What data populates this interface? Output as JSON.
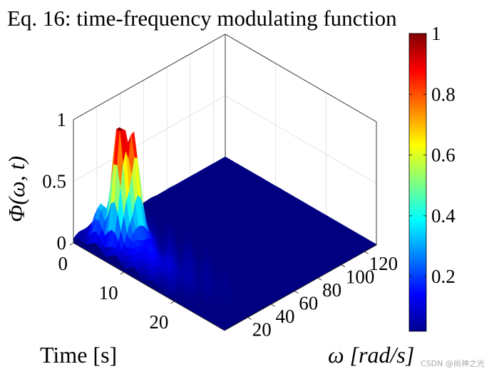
{
  "chart_data": {
    "type": "surface3d",
    "title": "Eq. 16: time-frequency modulating function",
    "xlabel": "Time [s]",
    "ylabel": "ω [rad/s]",
    "zlabel": "Φ(ω, t)",
    "xlim": [
      0,
      30
    ],
    "ylim": [
      0,
      130
    ],
    "zlim": [
      0,
      1
    ],
    "xticks": [
      0,
      10,
      20
    ],
    "yticks": [
      20,
      40,
      60,
      80,
      100,
      120
    ],
    "zticks": [
      0,
      0.5,
      1
    ],
    "grid": true,
    "colormap": "jet",
    "colorbar": {
      "range": [
        0.02,
        1
      ],
      "ticks": [
        0.2,
        0.4,
        0.6,
        0.8,
        1
      ]
    },
    "peaks": [
      {
        "t": 6.2,
        "omega": 14,
        "value": 1.0
      },
      {
        "t": 7.0,
        "omega": 20,
        "value": 0.85
      },
      {
        "t": 3.6,
        "omega": 9,
        "value": 0.25
      }
    ]
  },
  "watermark": "CSDN @尚神之光"
}
